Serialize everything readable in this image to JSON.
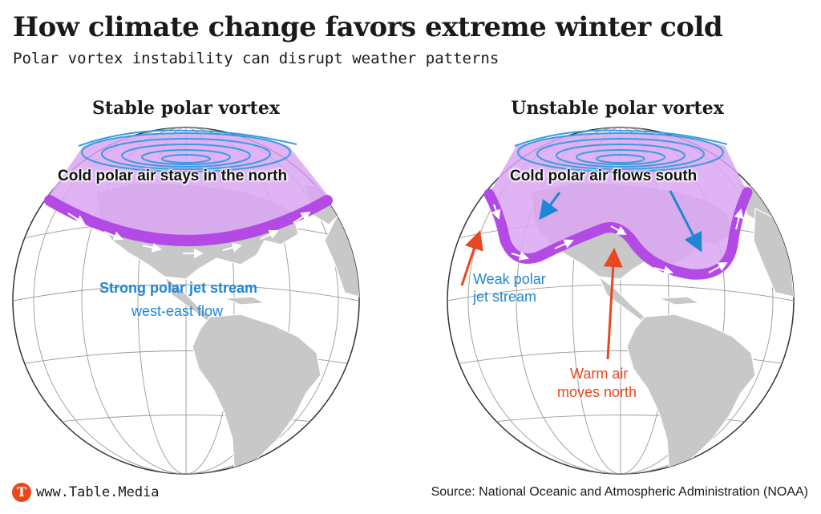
{
  "header": {
    "title": "How climate change favors extreme winter cold",
    "subtitle": "Polar vortex instability can disrupt weather patterns"
  },
  "panels": {
    "left": {
      "title": "Stable polar vortex",
      "cold_air_label": "Cold polar air stays in the north",
      "jet_label": "Strong polar jet stream",
      "flow_label": "west-east flow"
    },
    "right": {
      "title": "Unstable polar vortex",
      "cold_air_label": "Cold polar air flows south",
      "jet_label_line1": "Weak polar",
      "jet_label_line2": "jet stream",
      "warm_label_line1": "Warm air",
      "warm_label_line2": "moves north"
    }
  },
  "footer": {
    "logo_letter": "T",
    "site": "www.Table.Media",
    "source": "Source: National Oceanic and Atmospheric Administration (NOAA)"
  },
  "colors": {
    "cold_air_fill": "#d9a6f2",
    "jet_stream": "#b44ae6",
    "vortex_swirl": "#3a9be0",
    "warm_arrow": "#e8481d",
    "blue_text": "#1f86d6",
    "land": "#c8c8c8"
  },
  "icons": {
    "logo": "table-media-logo-icon"
  }
}
